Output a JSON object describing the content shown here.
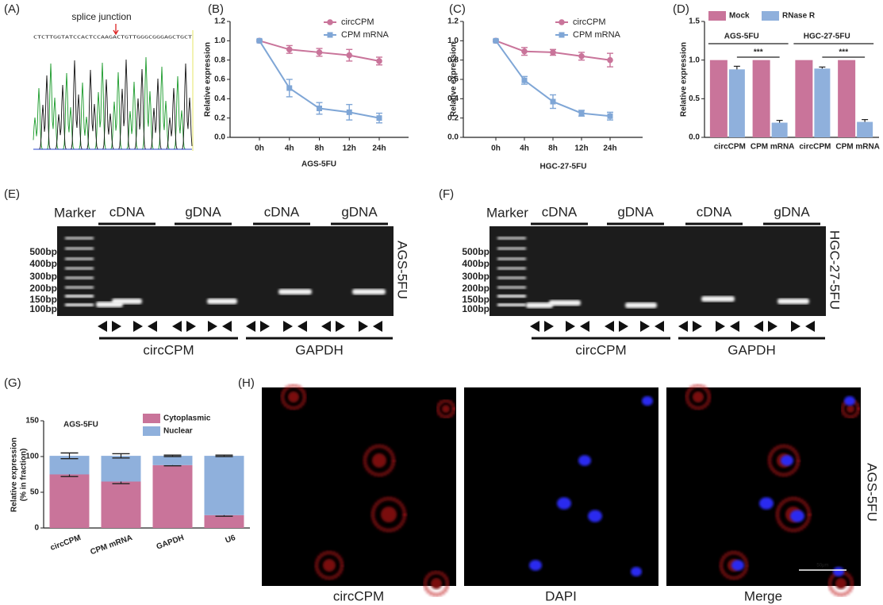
{
  "chart_data": [
    {
      "type": "line",
      "panel": "(B)",
      "xlabel": "AGS-5FU",
      "ylabel": "Relative expression",
      "categories": [
        "0h",
        "4h",
        "8h",
        "12h",
        "24h"
      ],
      "ylim": [
        0,
        1.2
      ],
      "yticks": [
        {
          "value": 0,
          "label": "0.0"
        },
        0.2,
        0.4,
        0.6,
        0.8,
        {
          "value": 1,
          "label": "1.0"
        },
        1.2
      ],
      "series": [
        {
          "name": "circCPM",
          "color": "#c9749a",
          "marker": "circle",
          "values": [
            1,
            0.91,
            0.88,
            0.85,
            0.79
          ],
          "errors": [
            0.01,
            0.04,
            0.04,
            0.06,
            0.04
          ]
        },
        {
          "name": "CPM mRNA",
          "color": "#7fa6d6",
          "marker": "square",
          "values": [
            1,
            0.51,
            0.3,
            0.26,
            0.2
          ],
          "errors": [
            0.01,
            0.09,
            0.06,
            0.08,
            0.05
          ]
        }
      ]
    },
    {
      "type": "line",
      "panel": "(C)",
      "xlabel": "HGC-27-5FU",
      "ylabel": "Relative expression",
      "categories": [
        "0h",
        "4h",
        "8h",
        "12h",
        "24h"
      ],
      "ylim": [
        0,
        1.2
      ],
      "yticks": [
        {
          "value": 0,
          "label": "0.0"
        },
        0.2,
        0.4,
        0.6,
        0.8,
        {
          "value": 1,
          "label": "1.0"
        },
        1.2
      ],
      "series": [
        {
          "name": "circCPM",
          "color": "#c9749a",
          "marker": "circle",
          "values": [
            1,
            0.89,
            0.88,
            0.84,
            0.8
          ],
          "errors": [
            0.01,
            0.04,
            0.03,
            0.04,
            0.07
          ]
        },
        {
          "name": "CPM mRNA",
          "color": "#7fa6d6",
          "marker": "square",
          "values": [
            1,
            0.59,
            0.37,
            0.25,
            0.22
          ],
          "errors": [
            0.01,
            0.04,
            0.07,
            0.03,
            0.04
          ]
        }
      ]
    },
    {
      "type": "bar",
      "panel": "(D)",
      "ylabel": "Relative expression",
      "categories": [
        "circCPM",
        "CPM mRNA",
        "circCPM",
        "CPM mRNA"
      ],
      "groups": [
        {
          "label": "AGS-5FU",
          "significance": "***"
        },
        {
          "label": "HGC-27-5FU",
          "significance": "***"
        }
      ],
      "ylim": [
        0,
        1.5
      ],
      "yticks": [
        {
          "value": 0,
          "label": "0.0"
        },
        0.5,
        {
          "value": 1,
          "label": "1.0"
        },
        1.5
      ],
      "series": [
        {
          "name": "Mock",
          "color": "#c9749a",
          "values": [
            1,
            1,
            1,
            1
          ],
          "errors": [
            0,
            0,
            0,
            0
          ]
        },
        {
          "name": "RNase R",
          "color": "#8fb0dc",
          "values": [
            0.88,
            0.19,
            0.89,
            0.2
          ],
          "errors": [
            0.04,
            0.03,
            0.02,
            0.03
          ]
        }
      ]
    },
    {
      "type": "stacked_bar",
      "panel": "(G)",
      "annotation": "AGS-5FU",
      "ylabel": [
        "Relative expression",
        "(% in fraction)"
      ],
      "categories": [
        "circCPM",
        "CPM mRNA",
        "GAPDH",
        "U6"
      ],
      "ylim": [
        0,
        150
      ],
      "yticks": [
        0,
        50,
        100,
        150
      ],
      "series": [
        {
          "name": "Cytoplasmic",
          "color": "#c9749a",
          "values": [
            75,
            65,
            88,
            18
          ],
          "errors": [
            3,
            3,
            1,
            1.5
          ]
        },
        {
          "name": "Nuclear",
          "color": "#8fb0dc",
          "values": [
            26,
            36,
            13,
            83
          ],
          "errors": [
            4,
            3,
            1,
            1
          ]
        }
      ]
    }
  ],
  "chromatogram": {
    "panel": "(A)",
    "annotation": "splice junction",
    "sequence": "CTCTTGGTATCCACTCCAAGACTGTTGGGCGGGAGCTGCT"
  },
  "gels": [
    {
      "panel": "(E)",
      "marker": "Marker",
      "lanes": [
        "cDNA",
        "gDNA",
        "cDNA",
        "gDNA"
      ],
      "ladder": [
        "500bp",
        "400bp",
        "300bp",
        "200bp",
        "150bp",
        "100bp"
      ],
      "cell_line": "AGS-5FU",
      "targets": [
        "circCPM",
        "GAPDH"
      ]
    },
    {
      "panel": "(F)",
      "marker": "Marker",
      "lanes": [
        "cDNA",
        "gDNA",
        "cDNA",
        "gDNA"
      ],
      "ladder": [
        "500bp",
        "400bp",
        "300bp",
        "200bp",
        "150bp",
        "100bp"
      ],
      "cell_line": "HGC-27-5FU",
      "targets": [
        "circCPM",
        "GAPDH"
      ]
    }
  ],
  "microscopy": {
    "panel": "(H)",
    "channels": [
      "circCPM",
      "DAPI",
      "Merge"
    ],
    "cell_line": "AGS-5FU",
    "scale_bar": "50μm"
  }
}
